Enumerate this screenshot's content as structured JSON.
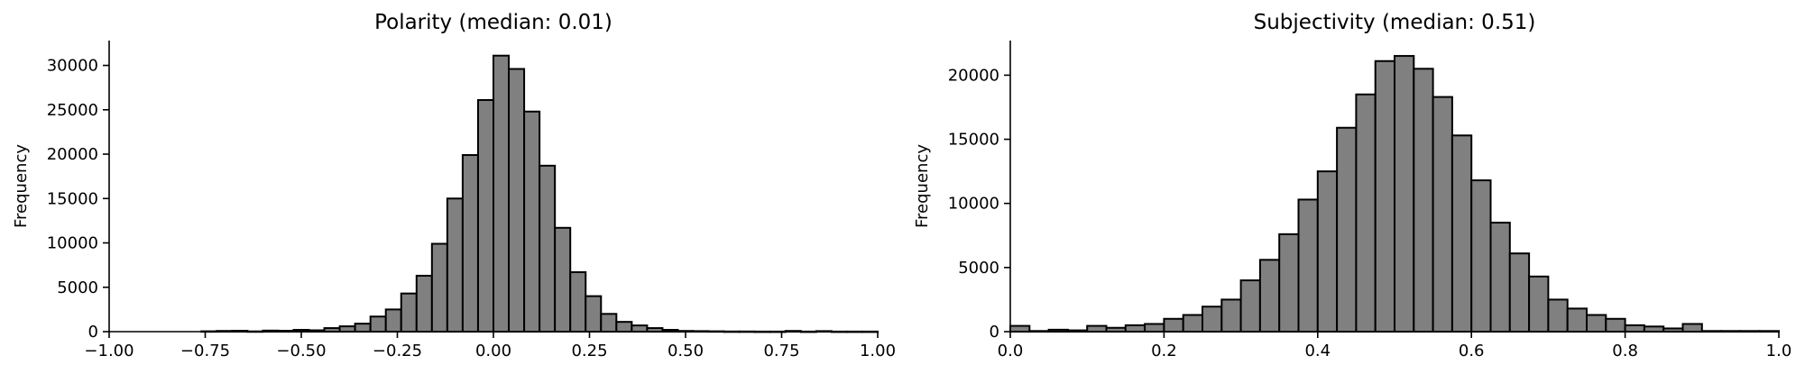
{
  "chart_data": [
    {
      "type": "bar",
      "title": "Polarity (median: 0.01)",
      "xlabel": "",
      "ylabel": "Frequency",
      "xlim": [
        -1.0,
        1.0
      ],
      "ylim": [
        0,
        32800
      ],
      "xticks": [
        "−1.00",
        "−0.75",
        "−0.50",
        "−0.25",
        "0.00",
        "0.25",
        "0.50",
        "0.75",
        "1.00"
      ],
      "yticks": [
        "0",
        "5000",
        "10000",
        "15000",
        "20000",
        "25000",
        "30000"
      ],
      "bin_start": -1.0,
      "bin_width": 0.04,
      "values": [
        0,
        0,
        0,
        0,
        0,
        0,
        40,
        80,
        100,
        30,
        120,
        100,
        200,
        150,
        400,
        600,
        900,
        1700,
        2500,
        4300,
        6300,
        9900,
        15000,
        19900,
        26100,
        31100,
        29600,
        24800,
        18700,
        11700,
        6700,
        4000,
        2000,
        1100,
        700,
        400,
        200,
        80,
        60,
        40,
        20,
        20,
        10,
        10,
        80,
        10,
        60,
        10,
        10,
        10
      ]
    },
    {
      "type": "bar",
      "title": "Subjectivity (median: 0.51)",
      "xlabel": "",
      "ylabel": "Frequency",
      "xlim": [
        0.0,
        1.0
      ],
      "ylim": [
        0,
        22700
      ],
      "xticks": [
        "0.0",
        "0.2",
        "0.4",
        "0.6",
        "0.8",
        "1.0"
      ],
      "yticks": [
        "0",
        "5000",
        "10000",
        "15000",
        "20000"
      ],
      "bin_start": 0.0,
      "bin_width": 0.025,
      "values": [
        450,
        50,
        150,
        100,
        450,
        300,
        500,
        600,
        1000,
        1300,
        1950,
        2500,
        4000,
        5600,
        7600,
        10300,
        12500,
        15900,
        18500,
        21100,
        21500,
        20500,
        18300,
        15300,
        11800,
        8500,
        6100,
        4300,
        2500,
        1800,
        1300,
        1000,
        500,
        400,
        250,
        600,
        50,
        50,
        50,
        50
      ]
    }
  ]
}
